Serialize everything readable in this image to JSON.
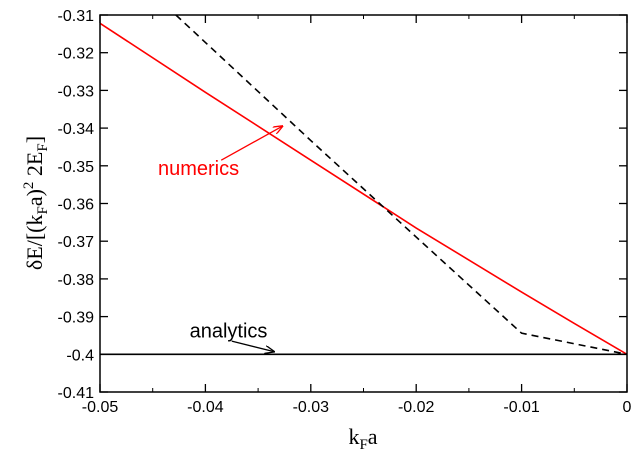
{
  "chart_data": {
    "type": "line",
    "xlabel": {
      "main": "k",
      "sub": "F",
      "tail": "a"
    },
    "ylabel": {
      "p1": "δE/[(k",
      "sub1": "F",
      "p2": "a)",
      "sup": "2",
      "p3": " 2E",
      "sub2": "F",
      "p4": "]"
    },
    "xlim": [
      -0.05,
      0
    ],
    "ylim": [
      -0.41,
      -0.31
    ],
    "x_ticks": [
      -0.05,
      -0.04,
      -0.03,
      -0.02,
      -0.01,
      0
    ],
    "x_tick_labels": [
      "-0.05",
      "-0.04",
      "-0.03",
      "-0.02",
      "-0.01",
      "0"
    ],
    "y_ticks": [
      -0.31,
      -0.32,
      -0.33,
      -0.34,
      -0.35,
      -0.36,
      -0.37,
      -0.38,
      -0.39,
      -0.4,
      -0.41
    ],
    "y_tick_labels": [
      "-0.31",
      "-0.32",
      "-0.33",
      "-0.34",
      "-0.35",
      "-0.36",
      "-0.37",
      "-0.38",
      "-0.39",
      "-0.4",
      "-0.41"
    ],
    "grid": false,
    "series": [
      {
        "color": "#ff0000",
        "style": "solid",
        "x": [
          -0.05,
          -0.04,
          -0.03,
          -0.02,
          -0.01,
          -0.005,
          0
        ],
        "y": [
          -0.3122,
          -0.3305,
          -0.3485,
          -0.3665,
          -0.3835,
          -0.3918,
          -0.4
        ]
      },
      {
        "color": "#000000",
        "style": "dashed",
        "x": [
          -0.0428,
          -0.03,
          -0.02,
          -0.01,
          0
        ],
        "y": [
          -0.31,
          -0.3433,
          -0.3689,
          -0.3944,
          -0.4
        ]
      },
      {
        "color": "#000000",
        "style": "solid",
        "x": [
          -0.05,
          0
        ],
        "y": [
          -0.4,
          -0.4
        ]
      }
    ],
    "annotations": [
      {
        "text": "numerics",
        "color": "#ff0000",
        "at": [
          -0.0445,
          -0.3525
        ],
        "arrow_from": [
          -0.0385,
          -0.3485
        ],
        "arrow_to": [
          -0.0327,
          -0.3395
        ]
      },
      {
        "text": "analytics",
        "color": "#000000",
        "at": [
          -0.0415,
          -0.3955
        ],
        "arrow_from": [
          -0.0375,
          -0.3965
        ],
        "arrow_to": [
          -0.0335,
          -0.3993
        ]
      }
    ]
  }
}
